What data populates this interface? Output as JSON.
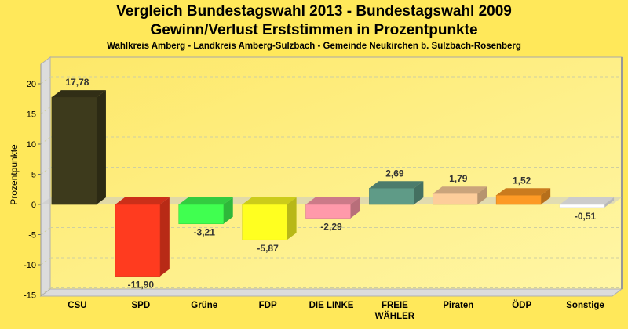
{
  "chart_data": {
    "type": "bar",
    "title": "Vergleich Bundestagswahl 2013 - Bundestagswahl 2009",
    "subtitle": "Gewinn/Verlust Erststimmen in Prozentpunkte",
    "subsubtitle": "Wahlkreis Amberg - Landkreis Amberg-Sulzbach - Gemeinde Neukirchen b. Sulzbach-Rosenberg",
    "xlabel": "",
    "ylabel": "Prozentpunkte",
    "ylim": [
      -16,
      22
    ],
    "yticks": [
      20,
      15,
      10,
      5,
      0,
      -5,
      -10,
      -15
    ],
    "ytick_labels": [
      "20",
      "15",
      "10",
      "5",
      "0",
      "-5",
      "-10",
      "-15"
    ],
    "grid": true,
    "categories": [
      "CSU",
      "SPD",
      "Grüne",
      "FDP",
      "DIE LINKE",
      "FREIE WÄHLER",
      "Piraten",
      "ÖDP",
      "Sonstige"
    ],
    "category_lines": [
      [
        "CSU"
      ],
      [
        "SPD"
      ],
      [
        "Grüne"
      ],
      [
        "FDP"
      ],
      [
        "DIE LINKE"
      ],
      [
        "FREIE",
        "WÄHLER"
      ],
      [
        "Piraten"
      ],
      [
        "ÖDP"
      ],
      [
        "Sonstige"
      ]
    ],
    "values": [
      17.78,
      -11.9,
      -3.21,
      -5.87,
      -2.29,
      2.69,
      1.79,
      1.52,
      -0.51
    ],
    "value_labels": [
      "17,78",
      "-11,90",
      "-3,21",
      "-5,87",
      "-2,29",
      "2,69",
      "1,79",
      "1,52",
      "-0,51"
    ],
    "colors": [
      "#3d3a1c",
      "#ff3b1f",
      "#40ff50",
      "#ffff20",
      "#ff99aa",
      "#5f9b87",
      "#fdcd9a",
      "#fd9a25",
      "#ffffff"
    ]
  }
}
